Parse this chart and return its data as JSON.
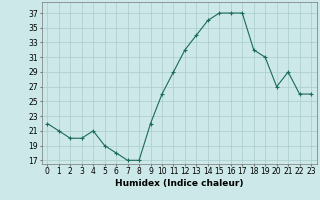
{
  "x": [
    0,
    1,
    2,
    3,
    4,
    5,
    6,
    7,
    8,
    9,
    10,
    11,
    12,
    13,
    14,
    15,
    16,
    17,
    18,
    19,
    20,
    21,
    22,
    23
  ],
  "y": [
    22,
    21,
    20,
    20,
    21,
    19,
    18,
    17,
    17,
    22,
    26,
    29,
    32,
    34,
    36,
    37,
    37,
    37,
    32,
    31,
    27,
    29,
    26,
    26
  ],
  "line_color": "#1a6b5a",
  "marker": "+",
  "marker_size": 3,
  "marker_lw": 0.8,
  "line_width": 0.8,
  "bg_color": "#cce8e8",
  "grid_color": "#aacccc",
  "xlabel": "Humidex (Indice chaleur)",
  "xlim": [
    -0.5,
    23.5
  ],
  "ylim": [
    16.5,
    38.5
  ],
  "yticks": [
    17,
    19,
    21,
    23,
    25,
    27,
    29,
    31,
    33,
    35,
    37
  ],
  "xticks": [
    0,
    1,
    2,
    3,
    4,
    5,
    6,
    7,
    8,
    9,
    10,
    11,
    12,
    13,
    14,
    15,
    16,
    17,
    18,
    19,
    20,
    21,
    22,
    23
  ],
  "xlabel_fontsize": 6.5,
  "tick_fontsize": 5.5
}
